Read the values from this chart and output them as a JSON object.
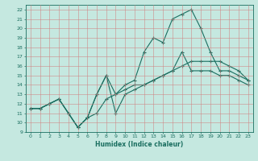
{
  "xlabel": "Humidex (Indice chaleur)",
  "background_color": "#c5e8e0",
  "grid_color": "#d08080",
  "line_color": "#1a6e60",
  "xlim": [
    -0.5,
    23.5
  ],
  "ylim": [
    9,
    22.5
  ],
  "xticks": [
    0,
    1,
    2,
    3,
    4,
    5,
    6,
    7,
    8,
    9,
    10,
    11,
    12,
    13,
    14,
    15,
    16,
    17,
    18,
    19,
    20,
    21,
    22,
    23
  ],
  "yticks": [
    9,
    10,
    11,
    12,
    13,
    14,
    15,
    16,
    17,
    18,
    19,
    20,
    21,
    22
  ],
  "line1_x": [
    0,
    1,
    2,
    3,
    4,
    5,
    6,
    7,
    8,
    9,
    10,
    11,
    12,
    13,
    14,
    15,
    16,
    17,
    18,
    19,
    20,
    21,
    22,
    23
  ],
  "line1_y": [
    11.5,
    11.5,
    12.0,
    12.5,
    11.0,
    9.5,
    10.5,
    13.0,
    15.0,
    11.0,
    13.0,
    13.5,
    14.0,
    14.5,
    15.0,
    15.5,
    17.5,
    15.5,
    15.5,
    15.5,
    15.0,
    15.0,
    14.5,
    14.0
  ],
  "line2_x": [
    0,
    1,
    2,
    3,
    4,
    5,
    6,
    7,
    8,
    9,
    10,
    11,
    12,
    13,
    14,
    15,
    16,
    17,
    18,
    19,
    20,
    21,
    22,
    23
  ],
  "line2_y": [
    11.5,
    11.5,
    12.0,
    12.5,
    11.0,
    9.5,
    10.5,
    13.0,
    15.0,
    13.0,
    14.0,
    14.5,
    17.5,
    19.0,
    18.5,
    21.0,
    21.5,
    22.0,
    20.0,
    17.5,
    15.5,
    15.5,
    15.0,
    14.5
  ],
  "line3_x": [
    0,
    1,
    2,
    3,
    4,
    5,
    6,
    7,
    8,
    9,
    10,
    11,
    12,
    13,
    14,
    15,
    16,
    17,
    18,
    19,
    20,
    21,
    22,
    23
  ],
  "line3_y": [
    11.5,
    11.5,
    12.0,
    12.5,
    11.0,
    9.5,
    10.5,
    11.0,
    12.5,
    13.0,
    13.5,
    14.0,
    14.0,
    14.5,
    15.0,
    15.5,
    16.0,
    16.5,
    16.5,
    16.5,
    16.5,
    16.0,
    15.5,
    14.5
  ],
  "tick_labelsize": 4.5,
  "xlabel_fontsize": 5.5
}
